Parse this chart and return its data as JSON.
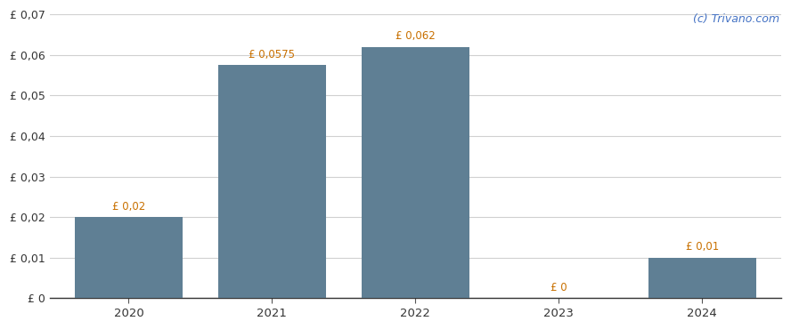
{
  "categories": [
    "2020",
    "2021",
    "2022",
    "2023",
    "2024"
  ],
  "values": [
    0.02,
    0.0575,
    0.062,
    0.0,
    0.01
  ],
  "bar_labels": [
    "£ 0,02",
    "£ 0,0575",
    "£ 0,062",
    "£ 0",
    "£ 0,01"
  ],
  "bar_color": "#5f7f94",
  "ylim": [
    0,
    0.07
  ],
  "yticks": [
    0.0,
    0.01,
    0.02,
    0.03,
    0.04,
    0.05,
    0.06,
    0.07
  ],
  "ytick_labels": [
    "£ 0",
    "£ 0,01",
    "£ 0,02",
    "£ 0,03",
    "£ 0,04",
    "£ 0,05",
    "£ 0,06",
    "£ 0,07"
  ],
  "background_color": "#ffffff",
  "grid_color": "#d0d0d0",
  "label_color": "#c87000",
  "watermark": "(c) Trivano.com",
  "watermark_color": "#4472c4",
  "bar_width": 0.75
}
